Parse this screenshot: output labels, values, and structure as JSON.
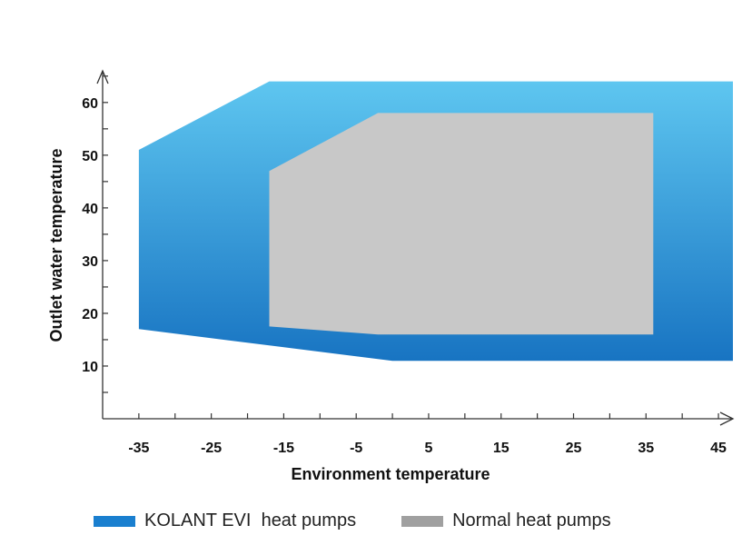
{
  "chart_data": {
    "type": "area",
    "xlabel": "Environment temperature",
    "ylabel": "Outlet water temperature",
    "xlim": [
      -40,
      47
    ],
    "ylim": [
      0,
      66
    ],
    "x_ticks": [
      -35,
      -25,
      -15,
      -5,
      5,
      15,
      25,
      35,
      45
    ],
    "x_tick_labels": [
      "-35",
      "-25",
      "-15",
      "-5",
      "5",
      "15",
      "25",
      "35",
      "45"
    ],
    "y_ticks": [
      10,
      20,
      30,
      40,
      50,
      60
    ],
    "y_tick_labels": [
      "10",
      "20",
      "30",
      "40",
      "50",
      "60"
    ],
    "grid": false,
    "legend_position": "bottom",
    "series": [
      {
        "name": "KOLANT EVI  heat pumps",
        "color": "#1a7fcf",
        "color_top": "#5ec6f0",
        "color_bottom": "#1874c2",
        "legend_color": "#1a7fcf",
        "polygon": [
          [
            -35,
            51
          ],
          [
            -17,
            64
          ],
          [
            47,
            64
          ],
          [
            47,
            11
          ],
          [
            35,
            11
          ],
          [
            0,
            11
          ],
          [
            -35,
            17
          ]
        ]
      },
      {
        "name": "Normal heat pumps",
        "color": "#c8c8c8",
        "legend_color": "#a0a0a0",
        "polygon": [
          [
            -17,
            47
          ],
          [
            -2,
            58
          ],
          [
            36,
            58
          ],
          [
            36,
            16
          ],
          [
            -2,
            16
          ],
          [
            -17,
            17.5
          ]
        ]
      }
    ]
  },
  "legend": [
    {
      "label": "KOLANT EVI  heat pumps",
      "color": "#1a7fcf"
    },
    {
      "label": "Normal heat pumps",
      "color": "#a0a0a0"
    }
  ]
}
